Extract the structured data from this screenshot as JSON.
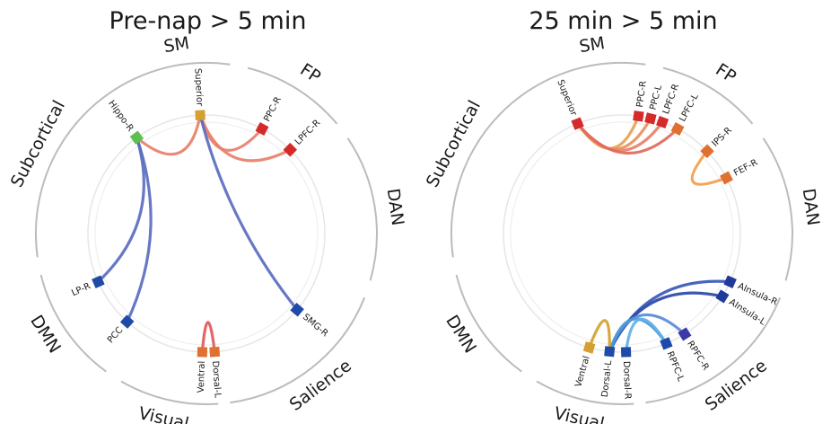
{
  "panels": [
    {
      "title": "Pre-nap > 5 min",
      "networks": [
        "SM",
        "FP",
        "DAN",
        "Salience",
        "Visual",
        "DMN",
        "Subcortical"
      ],
      "nodes": [
        {
          "id": "superior",
          "label": "Superior",
          "color": "#d4a030"
        },
        {
          "id": "ppc-r",
          "label": "PPC-R",
          "color": "#d42a2a"
        },
        {
          "id": "lpfc-r",
          "label": "LPFC-R",
          "color": "#d42a2a"
        },
        {
          "id": "smg-r",
          "label": "SMG-R",
          "color": "#1f4aa8"
        },
        {
          "id": "dorsal-l",
          "label": "Dorsal-L",
          "color": "#e07030"
        },
        {
          "id": "ventral",
          "label": "Ventral",
          "color": "#e07030"
        },
        {
          "id": "pcc",
          "label": "PCC",
          "color": "#1f4aa8"
        },
        {
          "id": "lp-r",
          "label": "LP-R",
          "color": "#1f4aa8"
        },
        {
          "id": "hippo-r",
          "label": "Hippo-R",
          "color": "#5cc050"
        }
      ],
      "edges": [
        {
          "from": "superior",
          "to": "ppc-r",
          "color": "#e8806a"
        },
        {
          "from": "superior",
          "to": "lpfc-r",
          "color": "#e8806a"
        },
        {
          "from": "superior",
          "to": "hippo-r",
          "color": "#e8806a"
        },
        {
          "from": "superior",
          "to": "smg-r",
          "color": "#5a6cc0"
        },
        {
          "from": "hippo-r",
          "to": "pcc",
          "color": "#5a6cc0"
        },
        {
          "from": "hippo-r",
          "to": "lp-r",
          "color": "#5a6cc0"
        },
        {
          "from": "dorsal-l",
          "to": "ventral",
          "color": "#e05a5a"
        }
      ]
    },
    {
      "title": "25 min > 5 min",
      "networks": [
        "SM",
        "FP",
        "DAN",
        "Salience",
        "Visual",
        "DMN",
        "Subcortical"
      ],
      "nodes": [
        {
          "id": "superior",
          "label": "Superior",
          "color": "#d42a2a"
        },
        {
          "id": "ppc-r",
          "label": "PPC-R",
          "color": "#d42a2a"
        },
        {
          "id": "ppc-l",
          "label": "PPC-L",
          "color": "#d42a2a"
        },
        {
          "id": "lpfc-r",
          "label": "LPFC-R",
          "color": "#d42a2a"
        },
        {
          "id": "lpfc-l",
          "label": "LPFC-L",
          "color": "#e07030"
        },
        {
          "id": "ips-r",
          "label": "IPS-R",
          "color": "#e07030"
        },
        {
          "id": "fef-r",
          "label": "FEF-R",
          "color": "#e07030"
        },
        {
          "id": "ainsula-r",
          "label": "AInsula-R",
          "color": "#1f3a9a"
        },
        {
          "id": "ainsula-l",
          "label": "AInsula-L",
          "color": "#1f3a9a"
        },
        {
          "id": "rpfc-r",
          "label": "RPFC-R",
          "color": "#3a3aa8"
        },
        {
          "id": "rpfc-l",
          "label": "RPFC-L",
          "color": "#1f4aa8"
        },
        {
          "id": "dorsal-r",
          "label": "Dorsal-R",
          "color": "#1f4aa8"
        },
        {
          "id": "dorsal-l",
          "label": "Dorsal-L",
          "color": "#1f4aa8"
        },
        {
          "id": "ventral",
          "label": "Ventral",
          "color": "#d4a030"
        }
      ],
      "edges": [
        {
          "from": "superior",
          "to": "ppc-r",
          "color": "#e8a050"
        },
        {
          "from": "superior",
          "to": "ppc-l",
          "color": "#e8905a"
        },
        {
          "from": "superior",
          "to": "lpfc-r",
          "color": "#e8806a"
        },
        {
          "from": "superior",
          "to": "lpfc-l",
          "color": "#e06a5a"
        },
        {
          "from": "ips-r",
          "to": "fef-r",
          "color": "#f0a050"
        },
        {
          "from": "dorsal-l",
          "to": "ainsula-r",
          "color": "#3a58b8"
        },
        {
          "from": "dorsal-l",
          "to": "ainsula-l",
          "color": "#2a48a8"
        },
        {
          "from": "dorsal-l",
          "to": "rpfc-r",
          "color": "#5a8ad8"
        },
        {
          "from": "dorsal-l",
          "to": "rpfc-l",
          "color": "#4a9ad8"
        },
        {
          "from": "dorsal-r",
          "to": "rpfc-l",
          "color": "#60b0e8"
        },
        {
          "from": "dorsal-l",
          "to": "ventral",
          "color": "#d4a030"
        }
      ]
    }
  ]
}
